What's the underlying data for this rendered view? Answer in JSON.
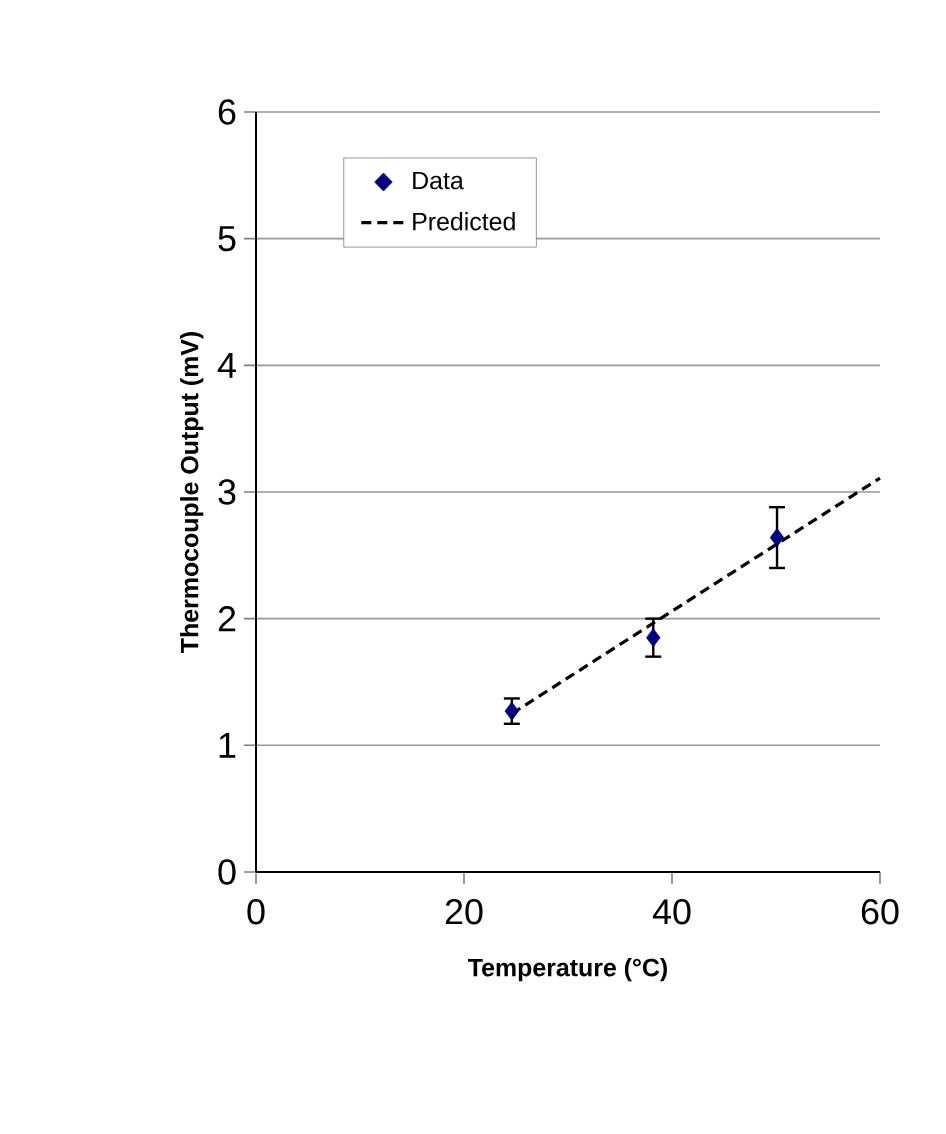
{
  "chart_data": {
    "type": "scatter",
    "xlabel": "Temperature (°C)",
    "ylabel": "Thermocouple Output (mV)",
    "xlim": [
      0,
      60
    ],
    "xticks": [
      0,
      20,
      40,
      60
    ],
    "ylim": [
      0,
      6
    ],
    "yticks": [
      0,
      1,
      2,
      3,
      4,
      5,
      6
    ],
    "grid": "y",
    "legend": "top left",
    "series": [
      {
        "name": "Data",
        "color": "#000080",
        "marker": "diamond",
        "x": [
          24.6,
          38.2,
          50.1
        ],
        "values": [
          1.27,
          1.85,
          2.64
        ],
        "errors": [
          0.1,
          0.15,
          0.24
        ]
      },
      {
        "name": "Predicted",
        "type": "line",
        "color": "#000000",
        "marker": "none",
        "line_style": "dashed",
        "x": [
          24.6,
          60
        ],
        "values": [
          1.25,
          3.11
        ]
      }
    ]
  }
}
